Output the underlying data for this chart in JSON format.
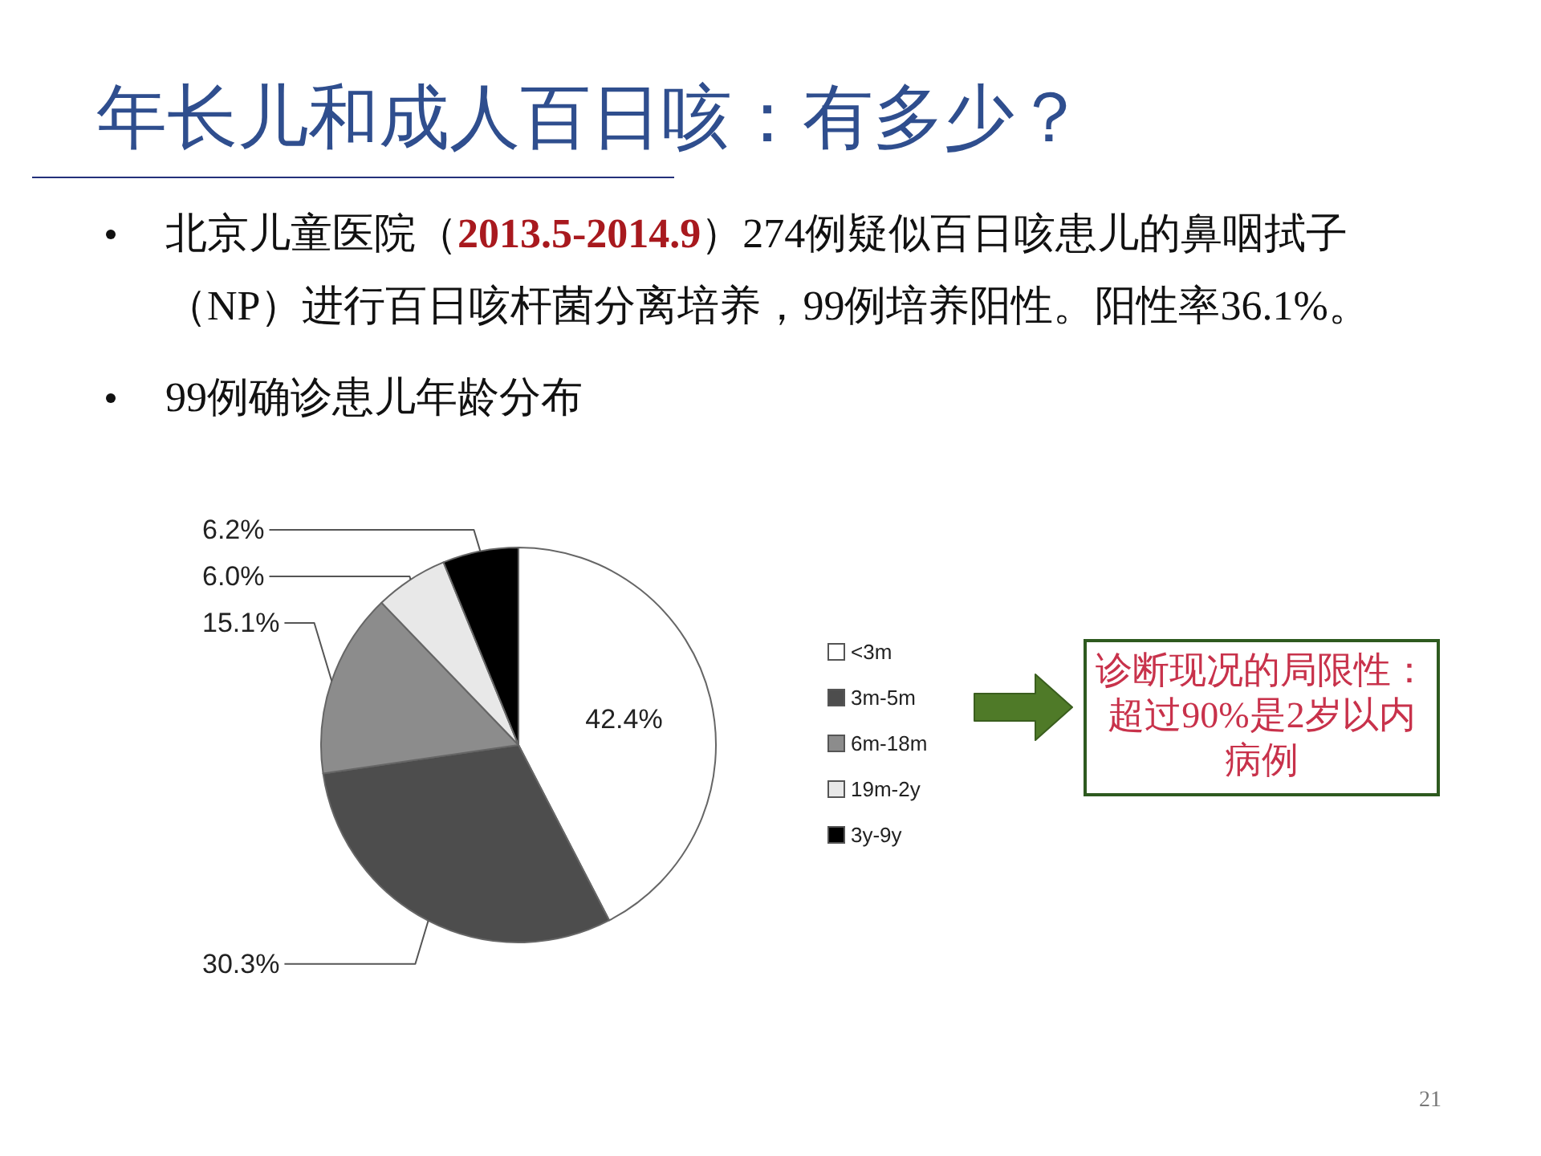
{
  "chart_data": {
    "type": "pie",
    "title": "年长儿和成人百日咳：有多少？",
    "categories": [
      "<3m",
      "3m-5m",
      "6m-18m",
      "19m-2y",
      "3y-9y"
    ],
    "values": [
      42.4,
      30.3,
      15.1,
      6.0,
      6.2
    ],
    "colors": [
      "#ffffff",
      "#4d4d4d",
      "#8c8c8c",
      "#e8e8e8",
      "#000000"
    ],
    "value_labels": [
      "42.4%",
      "30.3%",
      "15.1%",
      "6.0%",
      "6.2%"
    ],
    "legend": "right",
    "annotations": [
      "北京儿童医院（**2013.5-2014.9**）274例疑似百日咳患儿的鼻咽拭子（NP）进行百日咳杆菌分离培养，99例培养阳性。阳性率36.1%。",
      "99例确诊患儿年龄分布",
      "诊断现况的局限性：超过90%是2岁以内病例",
      "21"
    ]
  }
}
